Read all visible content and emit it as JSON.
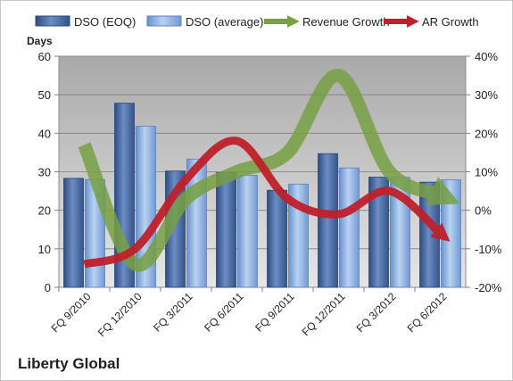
{
  "chart_data": {
    "type": "bar",
    "categories": [
      "FQ 9/2010",
      "FQ 12/2010",
      "FQ 3/2011",
      "FQ 6/2011",
      "FQ 9/2011",
      "FQ 12/2011",
      "FQ 3/2012",
      "FQ 6/2012"
    ],
    "series": [
      {
        "name": "DSO (EOQ)",
        "type": "bar",
        "axis": "left",
        "color": "#4a6da8",
        "values": [
          28.3,
          47.8,
          30.2,
          29.8,
          25.2,
          34.7,
          28.6,
          27.3
        ]
      },
      {
        "name": "DSO (average)",
        "type": "bar",
        "axis": "left",
        "color": "#8fb2e3",
        "values": [
          28.0,
          41.8,
          33.3,
          29.1,
          26.8,
          31.0,
          28.6,
          27.9
        ]
      },
      {
        "name": "Revenue Growth",
        "type": "line",
        "axis": "right",
        "color": "#77a044",
        "values": [
          17,
          -14,
          3,
          10,
          15,
          35,
          10,
          4
        ]
      },
      {
        "name": "AR Growth",
        "type": "line",
        "axis": "right",
        "color": "#c0202a",
        "values": [
          -14,
          -10,
          8,
          18,
          3,
          -1,
          5,
          -6
        ]
      }
    ],
    "ylabel": "Days",
    "ylim": [
      0,
      60
    ],
    "yticks": [
      "0",
      "10",
      "20",
      "30",
      "40",
      "50",
      "60"
    ],
    "y2lim": [
      -20,
      40
    ],
    "y2ticks": [
      "-20%",
      "-10%",
      "0%",
      "10%",
      "20%",
      "30%",
      "40%"
    ],
    "grid": "horizontal",
    "legend_position": "top",
    "plot_background": "#bfbfbf"
  },
  "caption": "Liberty Global"
}
